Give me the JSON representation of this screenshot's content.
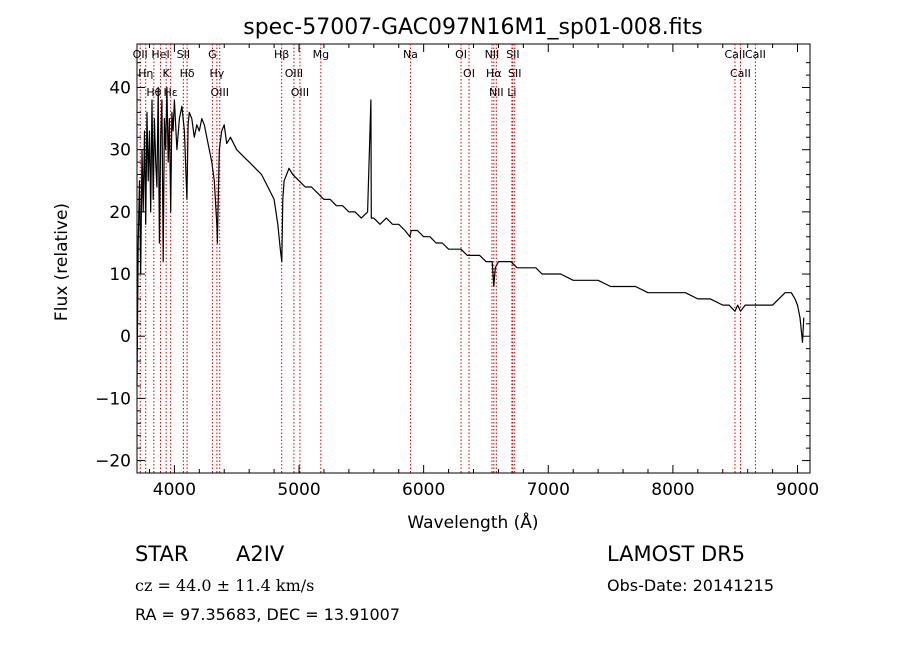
{
  "chart_data": {
    "type": "line",
    "title": "spec-57007-GAC097N16M1_sp01-008.fits",
    "xlabel": "Wavelength (Å)",
    "ylabel": "Flux (relative)",
    "xlim": [
      3700,
      9100
    ],
    "ylim": [
      -22,
      47
    ],
    "x_ticks": [
      4000,
      5000,
      6000,
      7000,
      8000,
      9000
    ],
    "y_ticks": [
      -20,
      -10,
      0,
      10,
      20,
      30,
      40
    ],
    "grid": false,
    "line_color": "#000000",
    "marker_color": "#cc0000",
    "series": [
      {
        "x": [
          3700,
          3710,
          3720,
          3730,
          3740,
          3750,
          3760,
          3770,
          3780,
          3790,
          3800,
          3810,
          3820,
          3830,
          3840,
          3850,
          3860,
          3870,
          3880,
          3890,
          3900,
          3910,
          3920,
          3930,
          3940,
          3950,
          3960,
          3970,
          3980,
          3990,
          4000,
          4020,
          4040,
          4060,
          4080,
          4100,
          4110,
          4120,
          4140,
          4160,
          4180,
          4200,
          4220,
          4240,
          4260,
          4280,
          4300,
          4320,
          4340,
          4345,
          4350,
          4360,
          4380,
          4400,
          4420,
          4450,
          4500,
          4550,
          4600,
          4650,
          4700,
          4750,
          4800,
          4830,
          4850,
          4862,
          4870,
          4880,
          4900,
          4920,
          4950,
          5000,
          5050,
          5100,
          5150,
          5200,
          5250,
          5300,
          5350,
          5400,
          5450,
          5500,
          5550,
          5577,
          5580,
          5600,
          5650,
          5700,
          5750,
          5800,
          5850,
          5890,
          5900,
          5950,
          6000,
          6050,
          6100,
          6150,
          6200,
          6250,
          6300,
          6350,
          6400,
          6450,
          6500,
          6550,
          6563,
          6575,
          6600,
          6650,
          6700,
          6750,
          6800,
          6850,
          6900,
          6950,
          7000,
          7100,
          7200,
          7300,
          7400,
          7500,
          7600,
          7700,
          7800,
          7900,
          8000,
          8100,
          8200,
          8300,
          8400,
          8450,
          8498,
          8520,
          8542,
          8580,
          8600,
          8662,
          8700,
          8800,
          8850,
          8900,
          8950,
          8980,
          9000,
          9020,
          9040,
          9050
        ],
        "y": [
          -8,
          15,
          25,
          10,
          30,
          20,
          33,
          18,
          36,
          25,
          33,
          20,
          38,
          22,
          35,
          28,
          24,
          40,
          15,
          32,
          38,
          12,
          35,
          30,
          40,
          28,
          35,
          20,
          36,
          33,
          38,
          30,
          35,
          37,
          33,
          22,
          34,
          36,
          35,
          32,
          34,
          33,
          35,
          34,
          32,
          30,
          28,
          25,
          18,
          15,
          20,
          30,
          33,
          34,
          31,
          32,
          30,
          29,
          28,
          27,
          26,
          24,
          22,
          18,
          14,
          12,
          22,
          25,
          26,
          27,
          26,
          25,
          24,
          24,
          23,
          22,
          22,
          21,
          21,
          20,
          20,
          19,
          20,
          38,
          19,
          19,
          18,
          19,
          18,
          18,
          17,
          16,
          17,
          17,
          16,
          16,
          15,
          15,
          14,
          14,
          14,
          13,
          13,
          13,
          12,
          12,
          8,
          11,
          12,
          12,
          12,
          11,
          11,
          11,
          11,
          10,
          10,
          10,
          9,
          9,
          9,
          8,
          8,
          8,
          7,
          7,
          7,
          7,
          6,
          6,
          5,
          5,
          4,
          5,
          4,
          5,
          5,
          5,
          5,
          5,
          6,
          7,
          7,
          6,
          5,
          3,
          -1,
          3
        ]
      }
    ],
    "line_markers": [
      {
        "wave": 3726,
        "label": "OII"
      },
      {
        "wave": 3770,
        "label": "Hη"
      },
      {
        "wave": 3835,
        "label": "Hθ"
      },
      {
        "wave": 3889,
        "label": "HeI"
      },
      {
        "wave": 3934,
        "label": "K"
      },
      {
        "wave": 3970,
        "label": "Hε"
      },
      {
        "wave": 4072,
        "label": "SII"
      },
      {
        "wave": 4102,
        "label": "Hδ"
      },
      {
        "wave": 4305,
        "label": "G"
      },
      {
        "wave": 4341,
        "label": "Hγ"
      },
      {
        "wave": 4364,
        "label": "OIII"
      },
      {
        "wave": 4861,
        "label": "Hβ"
      },
      {
        "wave": 4959,
        "label": "OIII"
      },
      {
        "wave": 5007,
        "label": "OIII"
      },
      {
        "wave": 5175,
        "label": "Mg"
      },
      {
        "wave": 5894,
        "label": "Na"
      },
      {
        "wave": 6300,
        "label": "OI"
      },
      {
        "wave": 6364,
        "label": "OI"
      },
      {
        "wave": 6548,
        "label": "NII"
      },
      {
        "wave": 6563,
        "label": "Hα"
      },
      {
        "wave": 6583,
        "label": "NII"
      },
      {
        "wave": 6708,
        "label": "Li"
      },
      {
        "wave": 6716,
        "label": "SII"
      },
      {
        "wave": 6731,
        "label": "SII"
      },
      {
        "wave": 8498,
        "label": "CaII"
      },
      {
        "wave": 8542,
        "label": "CaII"
      },
      {
        "wave": 8662,
        "label": "CaII"
      }
    ]
  },
  "info": {
    "class": "STAR",
    "subclass": "A2IV",
    "survey": "LAMOST  DR5",
    "cz": "cz = 44.0 ± 11.4 km/s",
    "obs_date": "Obs-Date: 20141215",
    "radec": "RA =  97.35683, DEC =  13.91007"
  }
}
